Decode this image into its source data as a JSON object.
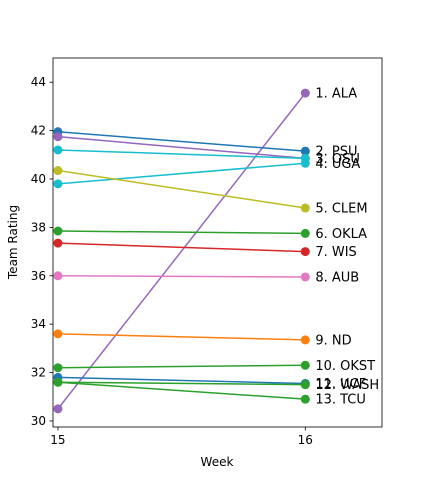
{
  "chart_data": {
    "type": "line",
    "title": "",
    "xlabel": "Week",
    "ylabel": "Team Rating",
    "x": [
      15,
      16
    ],
    "xlim": [
      14.98,
      16.31
    ],
    "ylim": [
      29.75,
      45.0
    ],
    "y_ticks": [
      30,
      32,
      34,
      36,
      38,
      40,
      42,
      44
    ],
    "x_ticks": [
      15,
      16
    ],
    "grid": false,
    "legend": "none",
    "series": [
      {
        "name": "1. ALA",
        "color": "#9467bd",
        "values": [
          30.5,
          43.55
        ]
      },
      {
        "name": "2. PSU",
        "color": "#1f77b4",
        "values": [
          41.95,
          41.15
        ]
      },
      {
        "name": "3. OSU",
        "color": "#9467bd",
        "values": [
          41.75,
          40.85
        ]
      },
      {
        "name": "4. UGA",
        "color": "#17becf",
        "values": [
          39.8,
          40.65
        ]
      },
      {
        "name": "5. CLEM",
        "color": "#bcbd22",
        "values": [
          40.35,
          38.8
        ]
      },
      {
        "name": "6. OKLA",
        "color": "#2ca02c",
        "values": [
          37.85,
          37.75
        ]
      },
      {
        "name": "7. WIS",
        "color": "#d62728",
        "values": [
          37.35,
          37.0
        ]
      },
      {
        "name": "8. AUB",
        "color": "#e377c2",
        "values": [
          36.0,
          35.95
        ]
      },
      {
        "name": "9. ND",
        "color": "#ff7f0e",
        "values": [
          33.6,
          33.35
        ]
      },
      {
        "name": "10. OKST",
        "color": "#2ca02c",
        "values": [
          32.2,
          32.3
        ]
      },
      {
        "name": "11. UCF",
        "color": "#1f77b4",
        "values": [
          31.8,
          31.55
        ]
      },
      {
        "name": "12. WASH",
        "color": "#2ca02c",
        "values": [
          31.6,
          31.5
        ]
      },
      {
        "name": "13. TCU",
        "color": "#2ca02c",
        "values": [
          31.6,
          30.9
        ]
      },
      {
        "name": "",
        "color": "#17becf",
        "values": [
          41.2,
          40.85
        ]
      }
    ]
  }
}
